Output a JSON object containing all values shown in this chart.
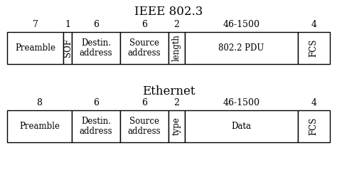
{
  "title1": "IEEE 802.3",
  "title2": "Ethernet",
  "ieee_labels": [
    "7",
    "1",
    "6",
    "6",
    "2",
    "46-1500",
    "4"
  ],
  "ieee_fields": [
    "Preamble",
    "SOF",
    "Destin.\naddress",
    "Source\naddress",
    "length",
    "802.2 PDU",
    "FCS"
  ],
  "ieee_rotated": [
    false,
    true,
    false,
    false,
    true,
    false,
    true
  ],
  "eth_labels": [
    "8",
    "6",
    "6",
    "2",
    "46-1500",
    "4"
  ],
  "eth_fields": [
    "Preamble",
    "Destin.\naddress",
    "Source\naddress",
    "type",
    "Data",
    "FCS"
  ],
  "eth_rotated": [
    false,
    false,
    false,
    true,
    false,
    true
  ],
  "ieee_widths": [
    7,
    1,
    6,
    6,
    2,
    14,
    4
  ],
  "eth_widths": [
    8,
    6,
    6,
    2,
    14,
    4
  ],
  "bg_color": "#ffffff",
  "box_color": "#ffffff",
  "edge_color": "#000000",
  "text_color": "#000000",
  "title_fontsize": 12,
  "label_fontsize": 9,
  "field_fontsize": 8.5
}
